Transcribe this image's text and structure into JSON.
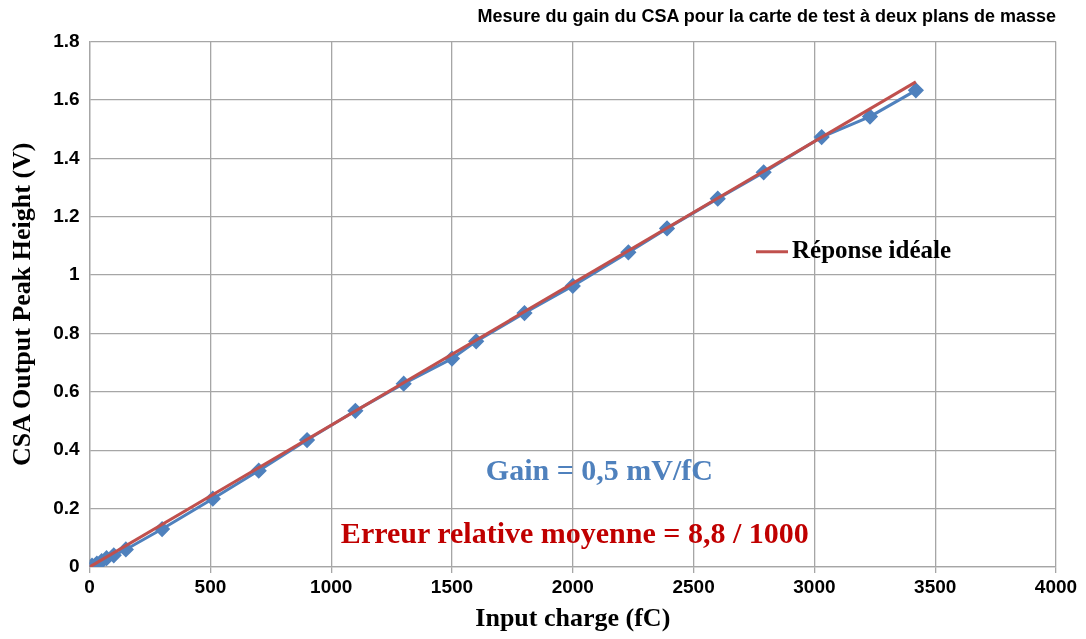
{
  "chart_data": {
    "type": "line",
    "title": "Mesure du gain du CSA pour la carte de test à deux plans de masse",
    "xlabel": "Input charge (fC)",
    "ylabel": "CSA Output Peak Height (V)",
    "xlim": [
      0,
      4000
    ],
    "xticks": [
      0,
      500,
      1000,
      1500,
      2000,
      2500,
      3000,
      3500,
      4000
    ],
    "ylim": [
      0,
      1.8
    ],
    "yticks": [
      0,
      0.2,
      0.4,
      0.6,
      0.8,
      1,
      1.2,
      1.4,
      1.6,
      1.8
    ],
    "grid": true,
    "legend": "right",
    "series": [
      {
        "color": "#4f81bd",
        "marker": "diamond",
        "x": [
          10,
          30,
          50,
          70,
          100,
          150,
          300,
          510,
          700,
          900,
          1100,
          1300,
          1500,
          1600,
          1800,
          2000,
          2230,
          2390,
          2600,
          2790,
          3030,
          3230,
          3420
        ],
        "values": [
          0.005,
          0.012,
          0.02,
          0.03,
          0.04,
          0.06,
          0.13,
          0.234,
          0.33,
          0.435,
          0.535,
          0.628,
          0.714,
          0.773,
          0.87,
          0.963,
          1.078,
          1.16,
          1.262,
          1.352,
          1.473,
          1.543,
          1.633
        ]
      },
      {
        "name": "Réponse idéale",
        "color": "#c0504d",
        "marker": "none",
        "x": [
          0,
          3420
        ],
        "values": [
          0,
          1.662
        ]
      }
    ],
    "annotations": [
      "Gain = 0,5 mV/fC",
      "Erreur relative moyenne = 8,8 / 1000"
    ]
  }
}
